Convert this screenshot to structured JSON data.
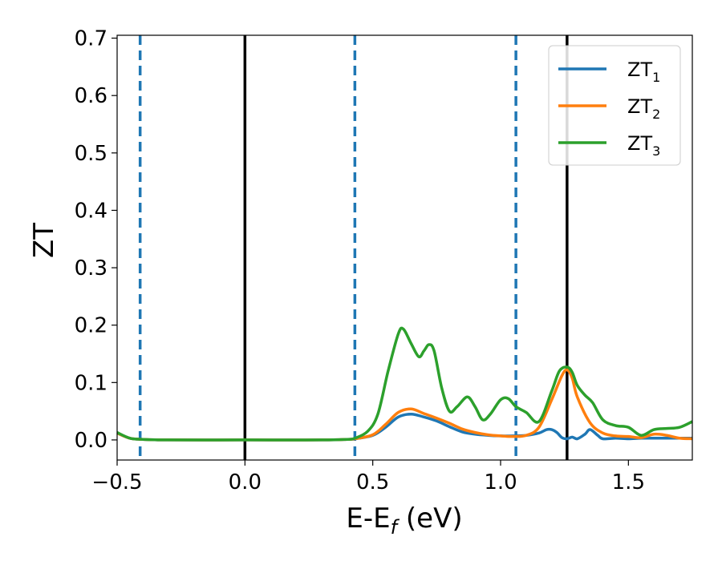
{
  "chart_data": {
    "type": "line",
    "xlabel": "E-E",
    "xlabel_sub": "f",
    "xlabel_unit": " (eV)",
    "ylabel": "ZT",
    "xlim": [
      -0.5,
      1.75
    ],
    "ylim": [
      -0.035,
      0.705
    ],
    "xticks": [
      -0.5,
      0.0,
      0.5,
      1.0,
      1.5
    ],
    "xtick_labels": [
      "−0.5",
      "0.0",
      "0.5",
      "1.0",
      "1.5"
    ],
    "yticks": [
      0.0,
      0.1,
      0.2,
      0.3,
      0.4,
      0.5,
      0.6,
      0.7
    ],
    "ytick_labels": [
      "0.0",
      "0.1",
      "0.2",
      "0.3",
      "0.4",
      "0.5",
      "0.6",
      "0.7"
    ],
    "grid": false,
    "legend_position": "top-right",
    "vlines": [
      {
        "x": -0.41,
        "style": "dashed",
        "color": "#1f77b4"
      },
      {
        "x": 0.0,
        "style": "solid",
        "color": "#000000"
      },
      {
        "x": 0.43,
        "style": "dashed",
        "color": "#1f77b4"
      },
      {
        "x": 1.06,
        "style": "dashed",
        "color": "#1f77b4"
      },
      {
        "x": 1.26,
        "style": "solid",
        "color": "#000000"
      }
    ],
    "series": [
      {
        "name": "ZT",
        "sub": "1",
        "color": "#1f77b4",
        "x": [
          -0.5,
          -0.45,
          -0.4,
          -0.3,
          0.0,
          0.3,
          0.4,
          0.43,
          0.5,
          0.55,
          0.6,
          0.65,
          0.7,
          0.75,
          0.8,
          0.85,
          0.9,
          0.95,
          1.0,
          1.05,
          1.1,
          1.15,
          1.18,
          1.2,
          1.22,
          1.24,
          1.26,
          1.28,
          1.3,
          1.33,
          1.35,
          1.38,
          1.4,
          1.45,
          1.5,
          1.55,
          1.6,
          1.65,
          1.7,
          1.75
        ],
        "y": [
          0.012,
          0.003,
          0.001,
          0.0,
          0.0,
          0.0,
          0.001,
          0.002,
          0.008,
          0.022,
          0.04,
          0.045,
          0.04,
          0.033,
          0.023,
          0.014,
          0.01,
          0.008,
          0.007,
          0.007,
          0.008,
          0.012,
          0.018,
          0.018,
          0.013,
          0.004,
          0.002,
          0.005,
          0.002,
          0.01,
          0.018,
          0.008,
          0.002,
          0.003,
          0.002,
          0.003,
          0.003,
          0.003,
          0.003,
          0.003
        ]
      },
      {
        "name": "ZT",
        "sub": "2",
        "color": "#ff7f0e",
        "x": [
          -0.5,
          -0.45,
          -0.4,
          -0.3,
          0.0,
          0.3,
          0.4,
          0.43,
          0.5,
          0.55,
          0.6,
          0.65,
          0.7,
          0.75,
          0.8,
          0.85,
          0.9,
          0.95,
          1.0,
          1.05,
          1.1,
          1.15,
          1.2,
          1.24,
          1.26,
          1.28,
          1.3,
          1.35,
          1.4,
          1.45,
          1.5,
          1.55,
          1.6,
          1.65,
          1.7,
          1.75
        ],
        "y": [
          0.012,
          0.003,
          0.001,
          0.0,
          0.0,
          0.0,
          0.001,
          0.002,
          0.009,
          0.027,
          0.048,
          0.054,
          0.046,
          0.038,
          0.029,
          0.019,
          0.013,
          0.009,
          0.007,
          0.006,
          0.008,
          0.022,
          0.07,
          0.112,
          0.122,
          0.108,
          0.075,
          0.03,
          0.012,
          0.007,
          0.006,
          0.004,
          0.01,
          0.008,
          0.003,
          0.002
        ]
      },
      {
        "name": "ZT",
        "sub": "3",
        "color": "#2ca02c",
        "x": [
          -0.5,
          -0.45,
          -0.4,
          -0.3,
          0.0,
          0.3,
          0.4,
          0.43,
          0.48,
          0.52,
          0.56,
          0.6,
          0.62,
          0.65,
          0.68,
          0.7,
          0.72,
          0.74,
          0.77,
          0.8,
          0.83,
          0.87,
          0.9,
          0.93,
          0.96,
          1.0,
          1.03,
          1.06,
          1.1,
          1.15,
          1.2,
          1.23,
          1.26,
          1.28,
          1.3,
          1.33,
          1.36,
          1.4,
          1.45,
          1.5,
          1.55,
          1.6,
          1.65,
          1.7,
          1.75
        ],
        "y": [
          0.013,
          0.003,
          0.001,
          0.0,
          0.0,
          0.0,
          0.001,
          0.003,
          0.015,
          0.045,
          0.12,
          0.185,
          0.193,
          0.168,
          0.145,
          0.155,
          0.166,
          0.155,
          0.09,
          0.05,
          0.058,
          0.075,
          0.058,
          0.035,
          0.045,
          0.07,
          0.072,
          0.058,
          0.048,
          0.032,
          0.085,
          0.12,
          0.127,
          0.118,
          0.095,
          0.078,
          0.065,
          0.035,
          0.025,
          0.022,
          0.008,
          0.018,
          0.02,
          0.022,
          0.032
        ]
      }
    ]
  }
}
